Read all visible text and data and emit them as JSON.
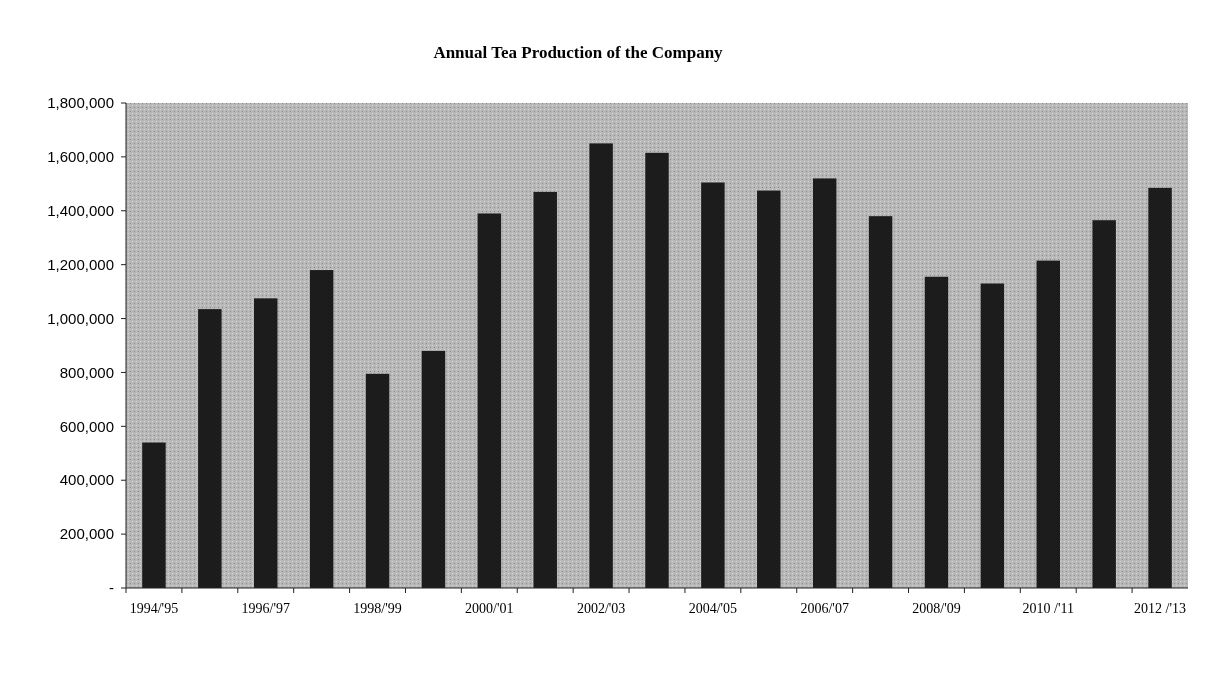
{
  "chart_data": {
    "type": "bar",
    "title": "Annual Tea Production of the Company",
    "categories": [
      "1994/'95",
      null,
      "1996/'97",
      null,
      "1998/'99",
      null,
      "2000/'01",
      null,
      "2002/'03",
      null,
      "2004/'05",
      null,
      "2006/'07",
      null,
      "2008/'09",
      null,
      "2010 /'11",
      null,
      "2012 /'13"
    ],
    "values": [
      540000,
      1035000,
      1075000,
      1180000,
      795000,
      880000,
      1390000,
      1470000,
      1650000,
      1615000,
      1505000,
      1475000,
      1520000,
      1380000,
      1155000,
      1130000,
      1215000,
      1365000,
      1485000
    ],
    "color": "#1c1c1c",
    "ylim": [
      0,
      1800000
    ],
    "yticks": [
      {
        "value": 0,
        "label": "-"
      },
      {
        "value": 200000,
        "label": "200,000"
      },
      {
        "value": 400000,
        "label": "400,000"
      },
      {
        "value": 600000,
        "label": "600,000"
      },
      {
        "value": 800000,
        "label": "800,000"
      },
      {
        "value": 1000000,
        "label": "1,000,000"
      },
      {
        "value": 1200000,
        "label": "1,200,000"
      },
      {
        "value": 1400000,
        "label": "1,400,000"
      },
      {
        "value": 1600000,
        "label": "1,600,000"
      },
      {
        "value": 1800000,
        "label": "1,800,000"
      }
    ],
    "grid": false
  }
}
